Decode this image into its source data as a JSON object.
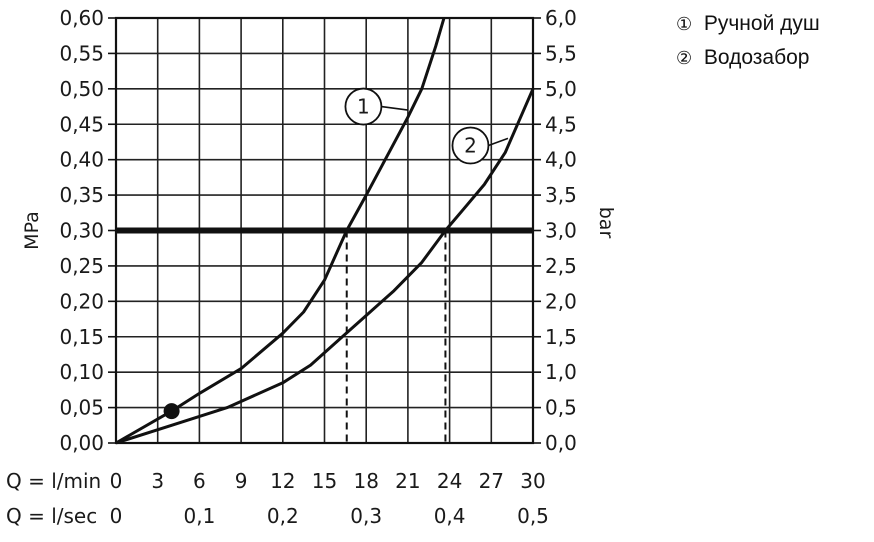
{
  "chart_data": {
    "type": "line",
    "x_axis": {
      "min": 0,
      "max": 30,
      "primary_label": "Q = l/min",
      "primary_ticks": [
        "0",
        "3",
        "6",
        "9",
        "12",
        "15",
        "18",
        "21",
        "24",
        "27",
        "30"
      ],
      "secondary_label": "Q = l/sec",
      "secondary_ticks": [
        {
          "value": 0,
          "label": "0"
        },
        {
          "value": 6,
          "label": "0,1"
        },
        {
          "value": 12,
          "label": "0,2"
        },
        {
          "value": 18,
          "label": "0,3"
        },
        {
          "value": 24,
          "label": "0,4"
        },
        {
          "value": 30,
          "label": "0,5"
        }
      ]
    },
    "y_left": {
      "label": "MPa",
      "min": 0,
      "max": 0.6,
      "ticks": [
        "0,00",
        "0,05",
        "0,10",
        "0,15",
        "0,20",
        "0,25",
        "0,30",
        "0,35",
        "0,40",
        "0,45",
        "0,50",
        "0,55",
        "0,60"
      ]
    },
    "y_right": {
      "label": "bar",
      "ticks": [
        "0,0",
        "0,5",
        "1,0",
        "1,5",
        "2,0",
        "2,5",
        "3,0",
        "3,5",
        "4,0",
        "4,5",
        "5,0",
        "5,5",
        "6,0"
      ]
    },
    "grid": true,
    "reference_line": {
      "y": 0.3
    },
    "series": [
      {
        "name": "Ручной душ",
        "marker": "1",
        "callout_point": {
          "x": 21,
          "y": 0.47
        },
        "callout_label_at": {
          "x": 17.8,
          "y": 0.475
        },
        "intersection_x": 16.6,
        "points": [
          {
            "x": 0,
            "y": 0
          },
          {
            "x": 4,
            "y": 0.045
          },
          {
            "x": 6,
            "y": 0.07
          },
          {
            "x": 9,
            "y": 0.105
          },
          {
            "x": 12,
            "y": 0.155
          },
          {
            "x": 13.5,
            "y": 0.185
          },
          {
            "x": 15,
            "y": 0.23
          },
          {
            "x": 16.6,
            "y": 0.3
          },
          {
            "x": 18,
            "y": 0.35
          },
          {
            "x": 19.5,
            "y": 0.405
          },
          {
            "x": 21,
            "y": 0.46
          },
          {
            "x": 22,
            "y": 0.5
          },
          {
            "x": 23,
            "y": 0.56
          },
          {
            "x": 23.6,
            "y": 0.6
          }
        ]
      },
      {
        "name": "Водозабор",
        "marker": "2",
        "callout_point": {
          "x": 28.2,
          "y": 0.43
        },
        "callout_label_at": {
          "x": 25.5,
          "y": 0.42
        },
        "intersection_x": 23.7,
        "points": [
          {
            "x": 0,
            "y": 0
          },
          {
            "x": 4,
            "y": 0.025
          },
          {
            "x": 8,
            "y": 0.05
          },
          {
            "x": 12,
            "y": 0.085
          },
          {
            "x": 14,
            "y": 0.11
          },
          {
            "x": 16,
            "y": 0.145
          },
          {
            "x": 18,
            "y": 0.18
          },
          {
            "x": 20,
            "y": 0.215
          },
          {
            "x": 22,
            "y": 0.255
          },
          {
            "x": 23.7,
            "y": 0.3
          },
          {
            "x": 25,
            "y": 0.33
          },
          {
            "x": 26.5,
            "y": 0.365
          },
          {
            "x": 28,
            "y": 0.41
          },
          {
            "x": 29,
            "y": 0.455
          },
          {
            "x": 30,
            "y": 0.5
          }
        ]
      }
    ],
    "highlight_point": {
      "x": 4,
      "y": 0.045
    }
  },
  "legend": {
    "items": [
      {
        "marker": "①",
        "label": "Ручной душ"
      },
      {
        "marker": "②",
        "label": "Водозабор"
      }
    ]
  }
}
